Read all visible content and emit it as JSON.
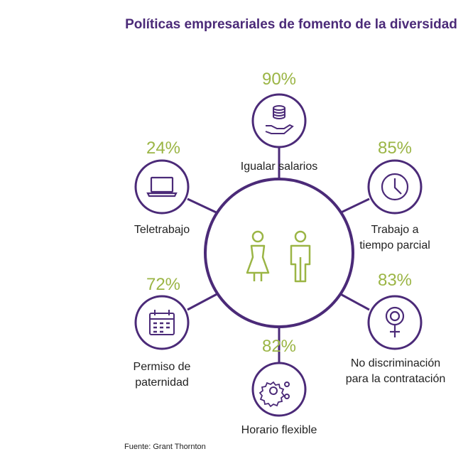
{
  "title": "Políticas empresariales de fomento de la diversidad",
  "items": [
    {
      "id": "salarios",
      "percent": "90%",
      "label": "Igualar salarios",
      "icon": "coins-hand-icon"
    },
    {
      "id": "teletrabajo",
      "percent": "24%",
      "label": "Teletrabajo",
      "icon": "laptop-icon"
    },
    {
      "id": "tiempo-parcial",
      "percent": "85%",
      "label": "Trabajo a tiempo parcial",
      "icon": "clock-icon"
    },
    {
      "id": "paternidad",
      "percent": "72%",
      "label": "Permiso de paternidad",
      "icon": "calendar-icon"
    },
    {
      "id": "discriminacion",
      "percent": "83%",
      "label": "No discriminación para la contratación",
      "icon": "female-symbol-icon"
    },
    {
      "id": "horario",
      "percent": "82%",
      "label": "Horario flexible",
      "icon": "gears-icon"
    }
  ],
  "center_icon": "woman-man-icon",
  "source": "Fuente: Grant Thornton",
  "colors": {
    "purple": "#4b2a78",
    "green": "#9bb545",
    "text": "#222222"
  }
}
